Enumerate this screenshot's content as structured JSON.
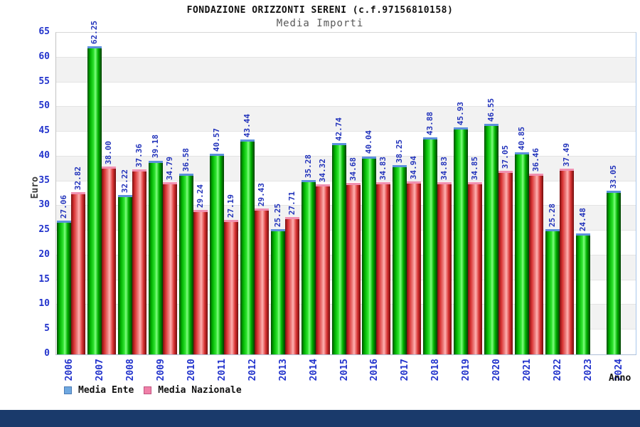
{
  "header": {
    "title": "FONDAZIONE ORIZZONTI SERENI (c.f.97156810158)",
    "subtitle": "Media Importi"
  },
  "chart_data": {
    "type": "bar",
    "title": "FONDAZIONE ORIZZONTI SERENI (c.f.97156810158)",
    "subtitle": "Media Importi",
    "xlabel": "Anno",
    "ylabel": "Euro",
    "ylim": [
      0,
      65
    ],
    "ytick_step": 5,
    "grid": "horizontal-bands-every-5",
    "legend_position": "bottom-left",
    "value_labels": "rotated-90-above-bars",
    "categories": [
      "2006",
      "2007",
      "2008",
      "2009",
      "2010",
      "2011",
      "2012",
      "2013",
      "2014",
      "2015",
      "2016",
      "2017",
      "2018",
      "2019",
      "2020",
      "2021",
      "2022",
      "2023",
      "2024"
    ],
    "series": [
      {
        "name": "Media Ente",
        "legend_color": "#6fa8e0",
        "legend_border": "#4a7bb5",
        "bar_color": "#00cc00",
        "cap_color": "#5c90dc",
        "values": [
          27.06,
          62.25,
          32.22,
          39.18,
          36.58,
          40.57,
          43.44,
          25.25,
          35.28,
          42.74,
          40.04,
          38.25,
          43.88,
          45.93,
          46.55,
          40.85,
          25.28,
          24.48,
          33.05
        ]
      },
      {
        "name": "Media Nazionale",
        "legend_color": "#f080a8",
        "legend_border": "#c05580",
        "bar_color": "#e04040",
        "cap_color": "#f090b0",
        "values": [
          32.82,
          38.0,
          37.36,
          34.79,
          29.24,
          27.19,
          29.43,
          27.71,
          34.32,
          34.68,
          34.83,
          34.94,
          34.83,
          34.85,
          37.05,
          36.46,
          37.49,
          null,
          null
        ]
      }
    ]
  },
  "colors": {
    "tick_label": "#2233cc",
    "value_label": "#2233bb",
    "band": "#f2f2f2",
    "footer": "#1a3a6b"
  }
}
